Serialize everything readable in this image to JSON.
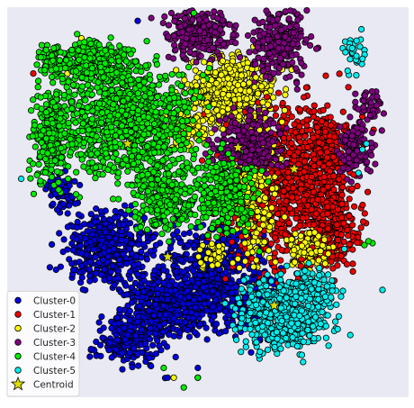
{
  "chart_data": {
    "type": "scatter",
    "title": "",
    "xlabel": "",
    "ylabel": "",
    "xlim": [
      -100,
      100
    ],
    "ylim": [
      -100,
      100
    ],
    "grid": false,
    "axes_visible": false,
    "background": "#e9e9f3",
    "legend_position": "lower-left",
    "series": [
      {
        "name": "Cluster-0",
        "color": "#0000dd",
        "blobs": [
          {
            "cx": -73,
            "cy": 5,
            "sx": 4,
            "sy": 5,
            "n": 70
          },
          {
            "cx": -50,
            "cy": -24,
            "sx": 11,
            "sy": 9,
            "n": 380
          },
          {
            "cx": 3,
            "cy": -40,
            "sx": 15,
            "sy": 14,
            "n": 700
          },
          {
            "cx": -24,
            "cy": -54,
            "sx": 11,
            "sy": 8,
            "n": 330
          },
          {
            "cx": -40,
            "cy": -72,
            "sx": 8,
            "sy": 6,
            "n": 160
          }
        ],
        "outliers": [
          [
            -35,
            93
          ],
          [
            -75,
            20
          ],
          [
            -20,
            -90
          ],
          [
            -5,
            -85
          ]
        ]
      },
      {
        "name": "Cluster-1",
        "color": "#ee0000",
        "blobs": [
          {
            "cx": 40,
            "cy": 9,
            "sx": 16,
            "sy": 22,
            "n": 900
          },
          {
            "cx": 58,
            "cy": 25,
            "sx": 6,
            "sy": 10,
            "n": 220
          },
          {
            "cx": 62,
            "cy": -14,
            "sx": 6,
            "sy": 10,
            "n": 160
          }
        ],
        "outliers": [
          [
            -87,
            66
          ],
          [
            70,
            59
          ]
        ]
      },
      {
        "name": "Cluster-2",
        "color": "#ffff00",
        "blobs": [
          {
            "cx": 12,
            "cy": 57,
            "sx": 11,
            "sy": 9,
            "n": 520
          },
          {
            "cx": -10,
            "cy": 38,
            "sx": 6,
            "sy": 5,
            "n": 100
          },
          {
            "cx": 24,
            "cy": 2,
            "sx": 5,
            "sy": 18,
            "n": 280
          },
          {
            "cx": 52,
            "cy": -24,
            "sx": 6,
            "sy": 5,
            "n": 120
          },
          {
            "cx": 3,
            "cy": -27,
            "sx": 4,
            "sy": 4,
            "n": 50
          }
        ],
        "outliers": [
          [
            -70,
            66
          ],
          [
            -63,
            84
          ],
          [
            -5,
            -90
          ],
          [
            -17,
            -90
          ]
        ]
      },
      {
        "name": "Cluster-3",
        "color": "#800080",
        "blobs": [
          {
            "cx": -4,
            "cy": 86,
            "sx": 8,
            "sy": 6,
            "n": 250
          },
          {
            "cx": 36,
            "cy": 82,
            "sx": 7,
            "sy": 9,
            "n": 240
          },
          {
            "cx": 21,
            "cy": 31,
            "sx": 8,
            "sy": 7,
            "n": 300
          },
          {
            "cx": 73,
            "cy": 27,
            "sx": 5,
            "sy": 7,
            "n": 110
          },
          {
            "cx": 80,
            "cy": 50,
            "sx": 3,
            "sy": 4,
            "n": 40
          }
        ],
        "outliers": []
      },
      {
        "name": "Cluster-4",
        "color": "#00ee00",
        "blobs": [
          {
            "cx": -40,
            "cy": 42,
            "sx": 16,
            "sy": 15,
            "n": 900
          },
          {
            "cx": -78,
            "cy": 35,
            "sx": 5,
            "sy": 12,
            "n": 230
          },
          {
            "cx": -58,
            "cy": 72,
            "sx": 10,
            "sy": 5,
            "n": 250
          },
          {
            "cx": -78,
            "cy": 73,
            "sx": 4,
            "sy": 4,
            "n": 60
          },
          {
            "cx": -22,
            "cy": 5,
            "sx": 8,
            "sy": 10,
            "n": 250
          },
          {
            "cx": 7,
            "cy": 5,
            "sx": 8,
            "sy": 10,
            "n": 250
          }
        ],
        "outliers": [
          [
            -7,
            97
          ],
          [
            -12,
            -95
          ],
          [
            -5,
            -90
          ],
          [
            -63,
            66
          ],
          [
            -22,
            -85
          ],
          [
            78,
            -22
          ],
          [
            80,
            -20
          ],
          [
            82,
            -21
          ]
        ]
      },
      {
        "name": "Cluster-5",
        "color": "#00eeee",
        "blobs": [
          {
            "cx": 38,
            "cy": -57,
            "sx": 11,
            "sy": 9,
            "n": 540
          },
          {
            "cx": 52,
            "cy": -45,
            "sx": 6,
            "sy": 5,
            "n": 110
          },
          {
            "cx": 73,
            "cy": 76,
            "sx": 3,
            "sy": 5,
            "n": 30
          }
        ],
        "outliers": [
          [
            -93,
            12
          ],
          [
            87,
            -45
          ],
          [
            77,
            27
          ],
          [
            75,
            15
          ],
          [
            68,
            -24
          ],
          [
            79,
            30
          ]
        ]
      }
    ],
    "centroids": {
      "name": "Centroid",
      "color": "#dddd00",
      "points": [
        [
          -20,
          -28
        ],
        [
          43,
          17
        ],
        [
          0,
          54
        ],
        [
          15,
          28
        ],
        [
          -40,
          30
        ],
        [
          33,
          -53
        ]
      ]
    }
  }
}
